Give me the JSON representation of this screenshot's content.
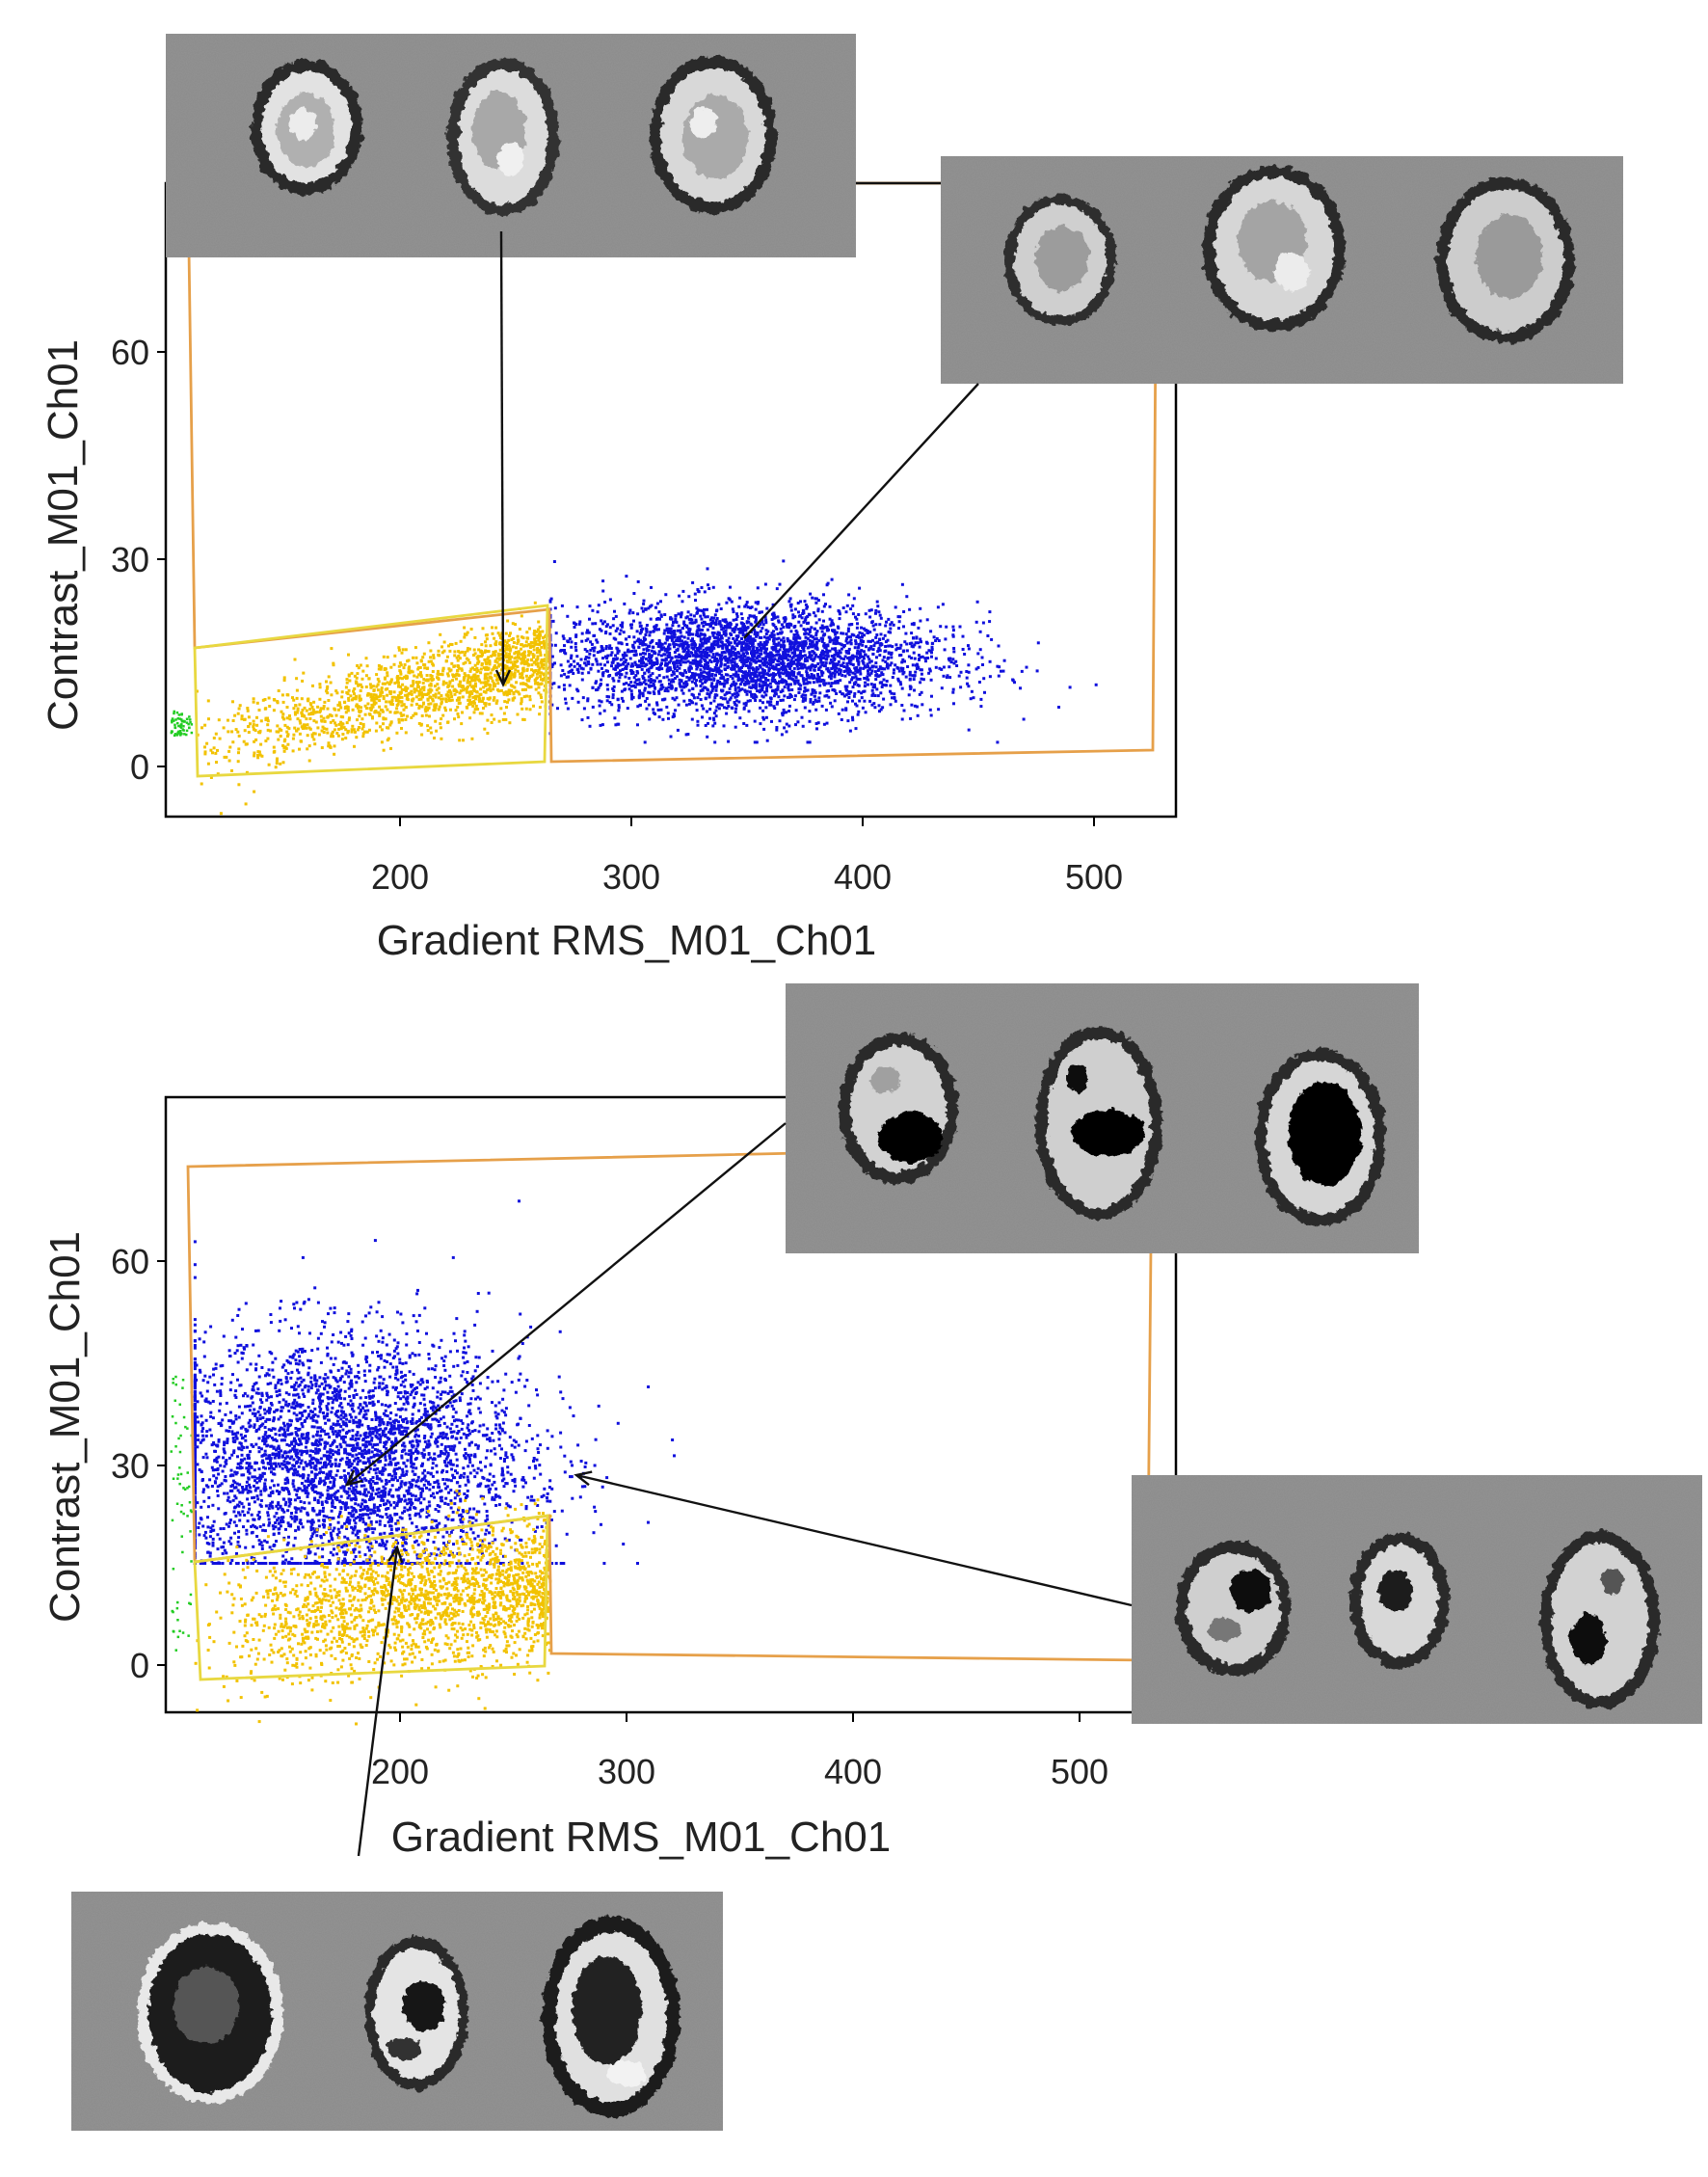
{
  "colors": {
    "positive_population": "#1010dd",
    "negative_population": "#f2c200",
    "debris": "#22cc22",
    "gate_outer": "#e6a04a",
    "gate_inner": "#e8d840",
    "thumbnail_bg": "#8a8a8a",
    "axis": "#000000"
  },
  "chart_data": [
    {
      "type": "scatter",
      "xlabel": "Gradient RMS_M01_Ch01",
      "ylabel": "Contrast_M01_Ch01",
      "xlim": [
        100,
        535
      ],
      "ylim": [
        -7,
        85
      ],
      "xticks": [
        "200",
        "300",
        "400",
        "500"
      ],
      "yticks": [
        "0",
        "30",
        "60"
      ],
      "series": [
        {
          "name": "yellow",
          "x_range": [
            110,
            265
          ],
          "y_from_x": [
            3,
            0.085
          ],
          "y_spread": 3,
          "count": 1600
        },
        {
          "name": "blue",
          "center": [
            350,
            16
          ],
          "spread": [
            42,
            4
          ],
          "x_range": [
            265,
            500
          ],
          "y_range": [
            4,
            40
          ],
          "count": 3400
        }
      ],
      "gates": [
        {
          "name": "outer",
          "x_range": [
            110,
            525
          ],
          "y_range": [
            1,
            80
          ]
        },
        {
          "name": "inner",
          "x_range": [
            112,
            265
          ],
          "y_range": [
            -1,
            23
          ]
        }
      ],
      "thumbnail_galleries": 2
    },
    {
      "type": "scatter",
      "xlabel": "Gradient RMS_M01_Ch01",
      "ylabel": "Contrast_M01_Ch01",
      "xlim": [
        100,
        535
      ],
      "ylim": [
        -7,
        83
      ],
      "xticks": [
        "200",
        "300",
        "400",
        "500"
      ],
      "yticks": [
        "0",
        "30",
        "60"
      ],
      "series": [
        {
          "name": "blue",
          "center": [
            175,
            30
          ],
          "spread": [
            40,
            9
          ],
          "x_range": [
            112,
            480
          ],
          "y_range": [
            15,
            68
          ],
          "count": 3800
        },
        {
          "name": "yellow",
          "x_range": [
            112,
            265
          ],
          "y_from_x": [
            6,
            0.035
          ],
          "y_spread": 5,
          "count": 2000
        }
      ],
      "gates": [
        {
          "name": "outer",
          "x_range": [
            110,
            525
          ],
          "y_range": [
            1,
            75
          ]
        },
        {
          "name": "inner",
          "x_range": [
            112,
            265
          ],
          "y_range": [
            -2,
            22
          ]
        }
      ],
      "thumbnail_galleries": 3
    }
  ]
}
